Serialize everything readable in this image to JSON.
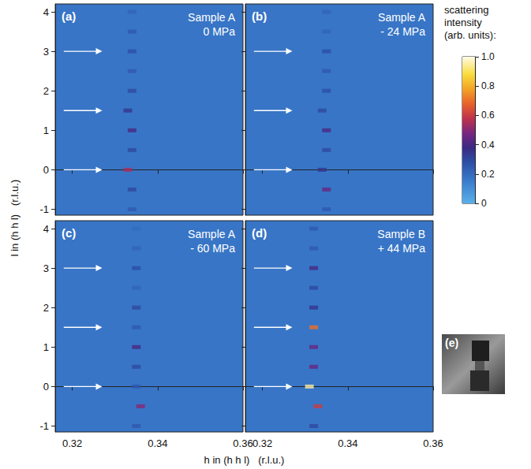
{
  "figure": {
    "xlabel": "h in (h h l)   (r.l.u.)",
    "ylabel": "l in (h h l)   (r.l.u.)",
    "colorbar": {
      "title": "scattering intensity (arb. units):",
      "range": [
        0,
        1
      ],
      "ticks": [
        0,
        0.2,
        0.4,
        0.6,
        0.8,
        {
          "value": 1,
          "label": "1.0"
        }
      ]
    },
    "inset": {
      "label": "(e)"
    }
  },
  "chart_data": [
    {
      "type": "heatmap",
      "label": "(a)",
      "title": "Sample A",
      "subtitle": "0 MPa",
      "xlim": [
        0.316,
        0.36
      ],
      "ylim": [
        -1.15,
        4.2
      ],
      "xticks": [
        0.32,
        0.34,
        0.36
      ],
      "yticks": [
        -1,
        0,
        1,
        2,
        3,
        4
      ],
      "tick_labels": "y",
      "background": 0.17,
      "peaks": {
        "h": [
          0.334,
          0.334,
          0.333,
          0.334,
          0.334,
          0.333,
          0.334,
          0.334,
          0.334,
          0.334,
          0.334
        ],
        "l": [
          -1,
          -0.5,
          0,
          0.5,
          1,
          1.5,
          2,
          2.5,
          3,
          3.5,
          4
        ],
        "intensity": [
          0.25,
          0.3,
          0.55,
          0.3,
          0.4,
          0.35,
          0.3,
          0.25,
          0.28,
          0.25,
          0.22
        ]
      },
      "arrows": {
        "h": [
          0.318,
          0.327
        ],
        "l": [
          0,
          1.5,
          3
        ]
      }
    },
    {
      "type": "heatmap",
      "label": "(b)",
      "title": "Sample A",
      "subtitle": "- 24 MPa",
      "xlim": [
        0.316,
        0.36
      ],
      "ylim": [
        -1.15,
        4.2
      ],
      "xticks": [
        0.32,
        0.34,
        0.36
      ],
      "yticks": [
        -1,
        0,
        1,
        2,
        3,
        4
      ],
      "tick_labels": false,
      "background": 0.17,
      "peaks": {
        "h": [
          0.335,
          0.335,
          0.334,
          0.335,
          0.335,
          0.334,
          0.335,
          0.335,
          0.335,
          0.335,
          0.335
        ],
        "l": [
          -1,
          -0.5,
          0,
          0.5,
          1,
          1.5,
          2,
          2.5,
          3,
          3.5,
          4
        ],
        "intensity": [
          0.25,
          0.45,
          0.35,
          0.3,
          0.4,
          0.3,
          0.28,
          0.25,
          0.28,
          0.22,
          0.22
        ]
      },
      "arrows": {
        "h": [
          0.318,
          0.327
        ],
        "l": [
          0,
          1.5,
          3
        ]
      }
    },
    {
      "type": "heatmap",
      "label": "(c)",
      "title": "Sample A",
      "subtitle": "- 60 MPa",
      "xlim": [
        0.316,
        0.36
      ],
      "ylim": [
        -1.15,
        4.2
      ],
      "xticks": [
        0.32,
        0.34,
        0.36
      ],
      "yticks": [
        -1,
        0,
        1,
        2,
        3,
        4
      ],
      "tick_labels": true,
      "background": 0.17,
      "peaks": {
        "h": [
          0.335,
          0.336,
          0.335,
          0.335,
          0.335,
          0.335,
          0.335,
          0.335,
          0.335,
          0.335,
          0.335
        ],
        "l": [
          -1,
          -0.5,
          0,
          0.5,
          1,
          1.5,
          2,
          2.5,
          3,
          3.5,
          4
        ],
        "intensity": [
          0.25,
          0.5,
          0.25,
          0.3,
          0.4,
          0.25,
          0.3,
          0.22,
          0.28,
          0.22,
          0.2
        ]
      },
      "arrows": {
        "h": [
          0.318,
          0.327
        ],
        "l": [
          0,
          1.5,
          3
        ]
      }
    },
    {
      "type": "heatmap",
      "label": "(d)",
      "title": "Sample B",
      "subtitle": "+ 44 MPa",
      "xlim": [
        0.316,
        0.36
      ],
      "ylim": [
        -1.15,
        4.2
      ],
      "xticks": [
        0.32,
        0.34,
        0.36
      ],
      "yticks": [
        -1,
        0,
        1,
        2,
        3,
        4
      ],
      "tick_labels": "x",
      "background": 0.17,
      "peaks": {
        "h": [
          0.332,
          0.333,
          0.331,
          0.332,
          0.332,
          0.332,
          0.332,
          0.332,
          0.332,
          0.332,
          0.332
        ],
        "l": [
          -1,
          -0.5,
          0,
          0.5,
          1,
          1.5,
          2,
          2.5,
          3,
          3.5,
          4
        ],
        "intensity": [
          0.3,
          0.6,
          0.95,
          0.45,
          0.45,
          0.7,
          0.35,
          0.3,
          0.4,
          0.25,
          0.25
        ]
      },
      "arrows": {
        "h": [
          0.318,
          0.327
        ],
        "l": [
          0,
          1.5,
          3
        ]
      }
    }
  ]
}
